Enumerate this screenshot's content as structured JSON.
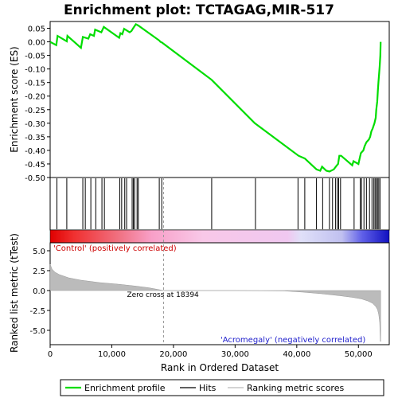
{
  "chart_data": {
    "type": "line",
    "title": "Enrichment plot: TCTAGAG,MIR-517",
    "top_panel": {
      "ylabel": "Enrichment score (ES)",
      "ylim": [
        -0.5,
        0.075
      ],
      "yticks": [
        0.05,
        0.0,
        -0.05,
        -0.1,
        -0.15,
        -0.2,
        -0.25,
        -0.3,
        -0.35,
        -0.4,
        -0.45,
        -0.5
      ],
      "ytick_labels": [
        "0.05",
        "0.00",
        "-0.05",
        "-0.10",
        "-0.15",
        "-0.20",
        "-0.25",
        "-0.30",
        "-0.35",
        "-0.40",
        "-0.45",
        "-0.50"
      ],
      "line_color": "#00dd00",
      "es_profile": [
        [
          0,
          0.0
        ],
        [
          1000,
          -0.012
        ],
        [
          1200,
          0.022
        ],
        [
          2700,
          0.002
        ],
        [
          2800,
          0.022
        ],
        [
          5000,
          -0.022
        ],
        [
          5300,
          0.018
        ],
        [
          6200,
          0.012
        ],
        [
          6500,
          0.028
        ],
        [
          7100,
          0.022
        ],
        [
          7300,
          0.045
        ],
        [
          8300,
          0.035
        ],
        [
          8700,
          0.055
        ],
        [
          11200,
          0.015
        ],
        [
          11400,
          0.032
        ],
        [
          11700,
          0.028
        ],
        [
          12000,
          0.048
        ],
        [
          12900,
          0.035
        ],
        [
          13200,
          0.04
        ],
        [
          13400,
          0.048
        ],
        [
          13700,
          0.058
        ],
        [
          13900,
          0.065
        ],
        [
          14300,
          0.06
        ],
        [
          17700,
          0.005
        ],
        [
          17900,
          0.0
        ],
        [
          18100,
          -0.002
        ],
        [
          26200,
          -0.14
        ],
        [
          33200,
          -0.3
        ],
        [
          40300,
          -0.42
        ],
        [
          41300,
          -0.43
        ],
        [
          43200,
          -0.47
        ],
        [
          43800,
          -0.475
        ],
        [
          44100,
          -0.46
        ],
        [
          44800,
          -0.475
        ],
        [
          45300,
          -0.478
        ],
        [
          46000,
          -0.47
        ],
        [
          46500,
          -0.455
        ],
        [
          46700,
          -0.45
        ],
        [
          46900,
          -0.42
        ],
        [
          47200,
          -0.42
        ],
        [
          49000,
          -0.455
        ],
        [
          49200,
          -0.44
        ],
        [
          50000,
          -0.45
        ],
        [
          50200,
          -0.43
        ],
        [
          50400,
          -0.41
        ],
        [
          50800,
          -0.4
        ],
        [
          51000,
          -0.385
        ],
        [
          51300,
          -0.37
        ],
        [
          51700,
          -0.36
        ],
        [
          51900,
          -0.35
        ],
        [
          52100,
          -0.33
        ],
        [
          52300,
          -0.32
        ],
        [
          52600,
          -0.3
        ],
        [
          52800,
          -0.28
        ],
        [
          52900,
          -0.25
        ],
        [
          53050,
          -0.22
        ],
        [
          53150,
          -0.18
        ],
        [
          53250,
          -0.15
        ],
        [
          53350,
          -0.12
        ],
        [
          53450,
          -0.09
        ],
        [
          53550,
          -0.05
        ],
        [
          53600,
          0.0
        ]
      ]
    },
    "hits": [
      1100,
      2700,
      5300,
      5700,
      6600,
      7400,
      8400,
      8800,
      11300,
      11600,
      12100,
      12400,
      13300,
      13500,
      13700,
      14100,
      14300,
      17700,
      18100,
      26200,
      33300,
      40200,
      41300,
      43200,
      44200,
      45300,
      45800,
      46300,
      46600,
      46800,
      47100,
      49300,
      50300,
      50500,
      50900,
      51300,
      51800,
      52200,
      52500,
      52700,
      52900,
      53100,
      53300,
      53500
    ],
    "bottom_panel": {
      "ylabel": "Ranked list metric (tTest)",
      "xlabel": "Rank in Ordered Dataset",
      "xlim": [
        0,
        55000
      ],
      "ylim": [
        -6.8,
        6.0
      ],
      "yticks": [
        5.0,
        2.5,
        0.0,
        -2.5,
        -5.0
      ],
      "ytick_labels": [
        "5.0",
        "2.5",
        "0.0",
        "-2.5",
        "-5.0"
      ],
      "xticks": [
        0,
        10000,
        20000,
        30000,
        40000,
        50000
      ],
      "xtick_labels": [
        "0",
        "10,000",
        "20,000",
        "30,000",
        "40,000",
        "50,000"
      ],
      "zero_cross_rank": 18394,
      "zero_cross_label": "Zero cross at 18394",
      "pos_label": "'Control' (positively correlated)",
      "neg_label": "'Acromegaly' (negatively correlated)",
      "metric_profile": [
        [
          0,
          3.3
        ],
        [
          300,
          2.7
        ],
        [
          800,
          2.3
        ],
        [
          1500,
          2.0
        ],
        [
          3000,
          1.6
        ],
        [
          5000,
          1.3
        ],
        [
          8000,
          1.0
        ],
        [
          11000,
          0.8
        ],
        [
          14000,
          0.55
        ],
        [
          16000,
          0.35
        ],
        [
          18394,
          0.0
        ],
        [
          30000,
          0.0
        ],
        [
          38000,
          -0.05
        ],
        [
          41000,
          -0.2
        ],
        [
          44000,
          -0.4
        ],
        [
          47000,
          -0.65
        ],
        [
          49000,
          -0.85
        ],
        [
          50500,
          -1.05
        ],
        [
          51500,
          -1.3
        ],
        [
          52300,
          -1.6
        ],
        [
          52800,
          -2.0
        ],
        [
          53100,
          -2.4
        ],
        [
          53300,
          -3.0
        ],
        [
          53450,
          -4.0
        ],
        [
          53550,
          -6.4
        ],
        [
          53600,
          -6.4
        ]
      ]
    },
    "legend": {
      "items": [
        {
          "label": "Enrichment profile",
          "color": "#00dd00"
        },
        {
          "label": "Hits",
          "color": "#000000"
        },
        {
          "label": "Ranking metric scores",
          "color": "#bbbbbb"
        }
      ]
    }
  }
}
